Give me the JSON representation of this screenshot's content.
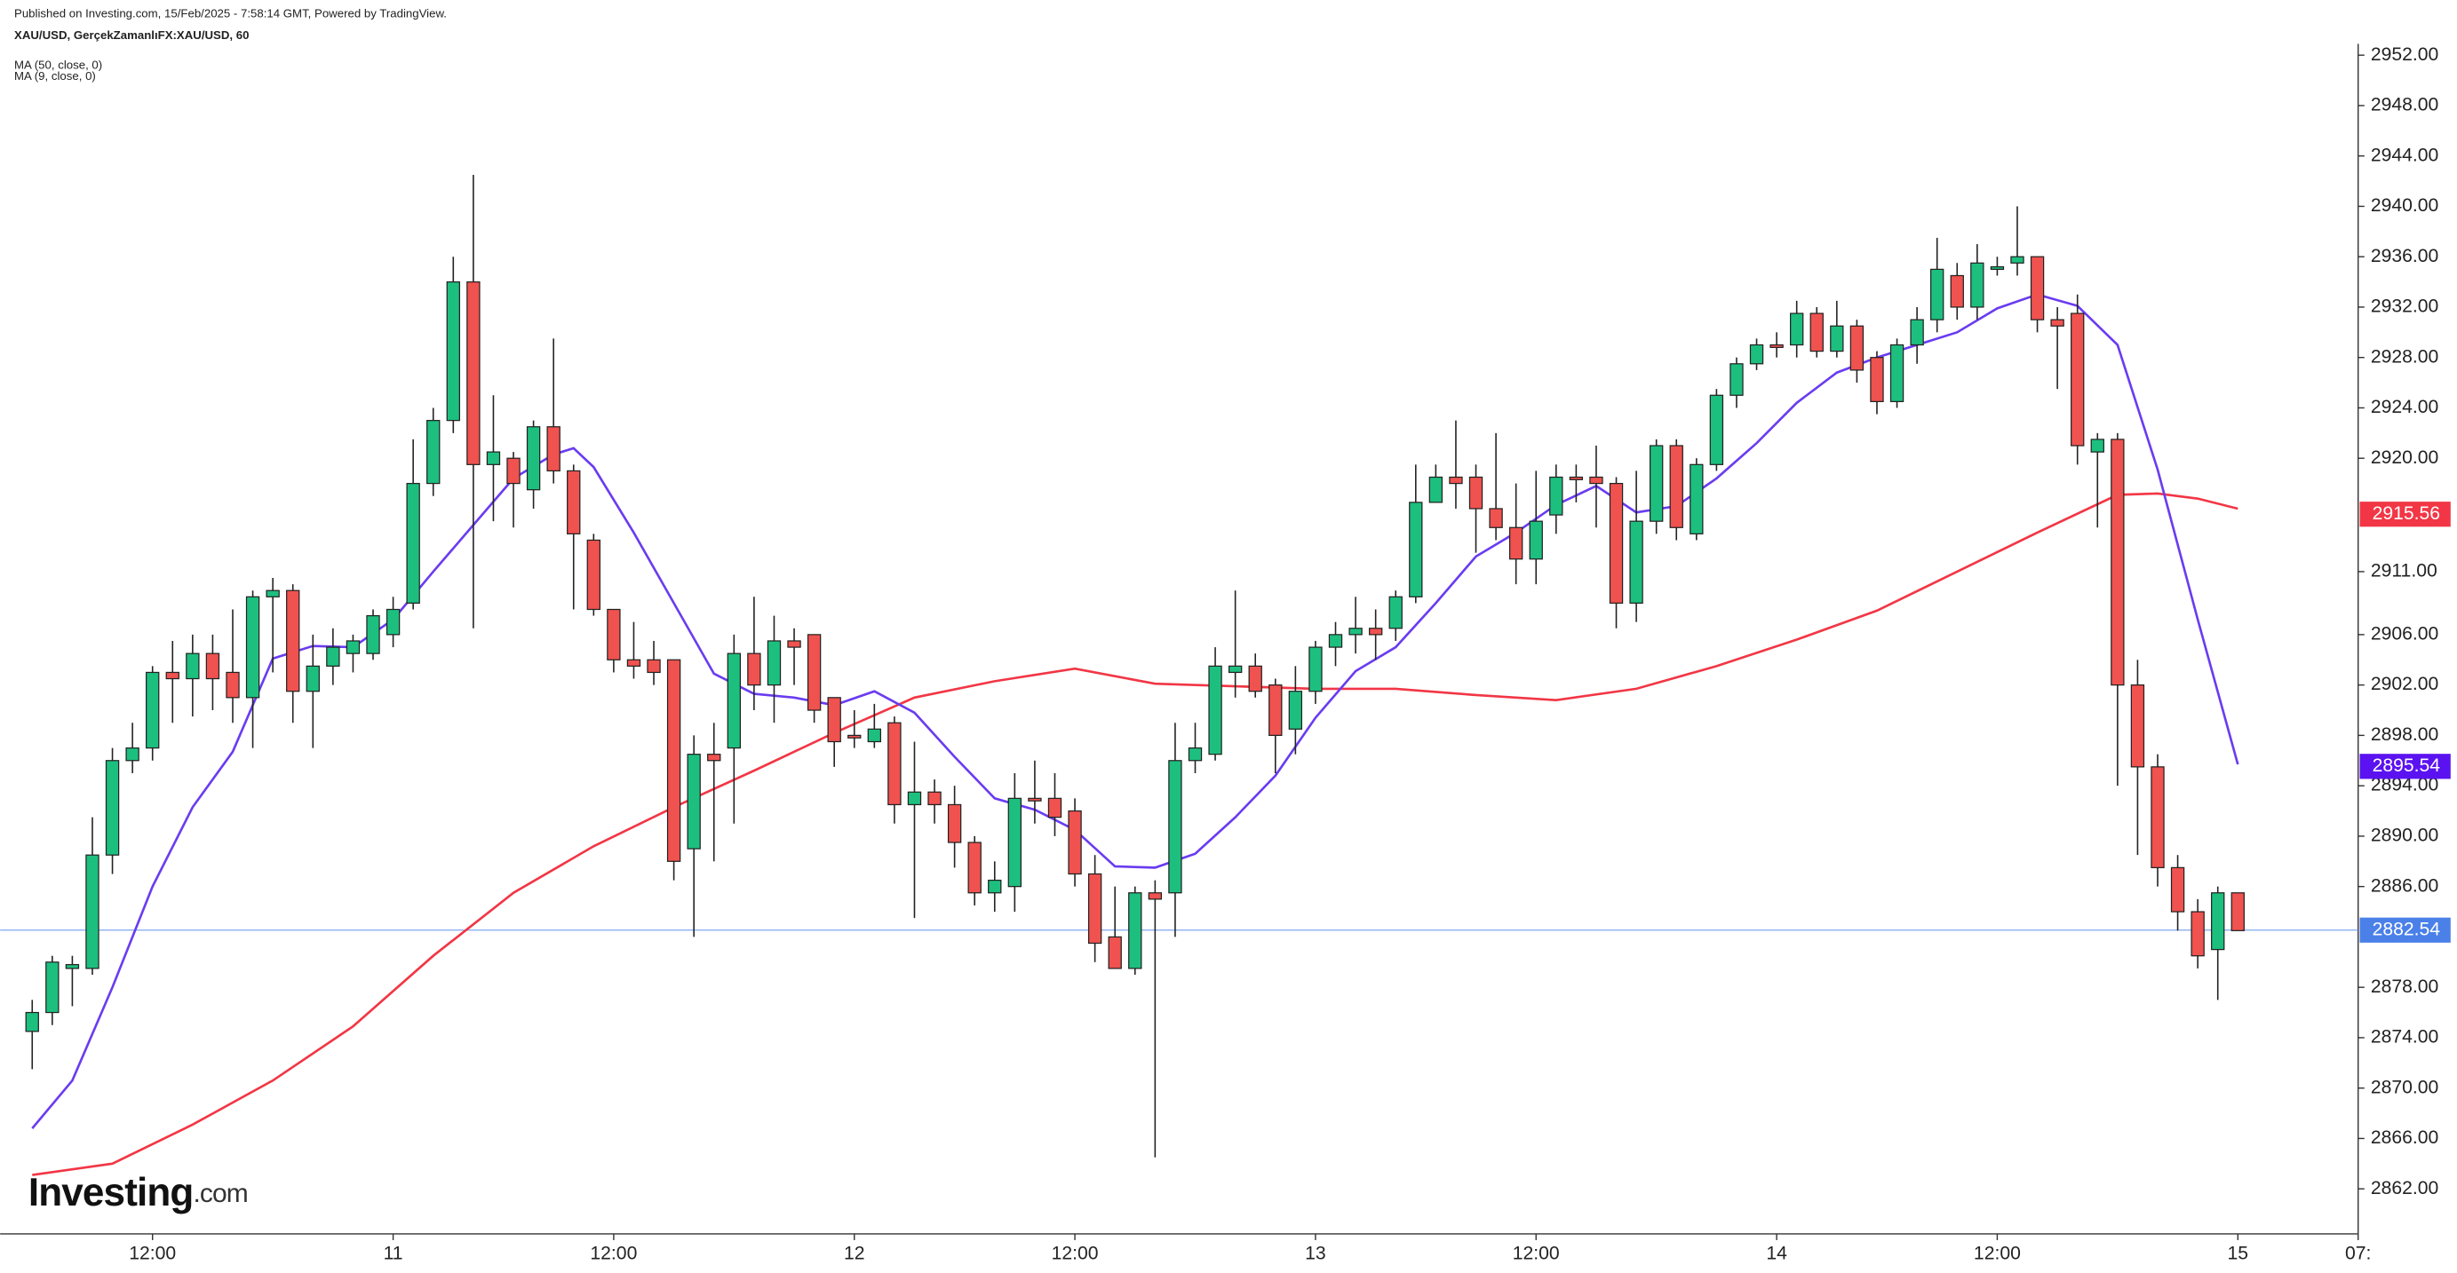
{
  "chart_data": {
    "type": "candlestick",
    "source": "Published on Investing.com, 15/Feb/2025 - 7:58:14 GMT, Powered by TradingView.",
    "title": "XAU/USD, GerçekZamanlıFX:XAU/USD, 60",
    "logo": "Investing",
    "logo_suffix": ".com",
    "up_color": "#1dbf7f",
    "down_color": "#f0524f",
    "x": [
      0,
      1,
      2,
      3,
      4,
      5,
      6,
      7,
      8,
      9,
      10,
      11,
      12,
      13,
      14,
      15,
      16,
      17,
      18,
      19,
      20,
      21,
      22,
      23,
      24,
      25,
      26,
      27,
      28,
      29,
      30,
      31,
      32,
      33,
      34,
      35,
      36,
      37,
      38,
      39,
      40,
      41,
      42,
      43,
      44,
      45,
      46,
      47,
      48,
      49,
      50,
      51,
      52,
      53,
      54,
      55,
      56,
      57,
      58,
      59,
      60,
      61,
      62,
      63,
      64,
      65,
      66,
      67,
      68,
      69,
      70,
      71,
      72,
      73,
      74,
      75,
      76,
      77,
      78,
      79,
      80,
      81,
      82,
      83,
      84,
      85,
      86,
      87,
      88,
      89,
      90,
      91,
      92,
      93,
      94,
      95,
      96,
      97,
      98,
      99,
      100,
      101,
      102,
      103,
      104,
      105,
      106,
      107,
      108,
      109,
      110
    ],
    "open": [
      2874.5,
      2876,
      2879.5,
      2879.5,
      2888.5,
      2896,
      2897,
      2903,
      2902.5,
      2904.5,
      2903,
      2901,
      2909,
      2909.5,
      2901.5,
      2903.5,
      2904.5,
      2904.5,
      2906,
      2908.5,
      2918,
      2923,
      2934,
      2919.5,
      2920,
      2917.5,
      2922.5,
      2919,
      2913.5,
      2908,
      2904,
      2904,
      2904,
      2889,
      2896.5,
      2897,
      2904.5,
      2902,
      2905.5,
      2906,
      2901,
      2898,
      2897.5,
      2899,
      2892.5,
      2893.5,
      2892.5,
      2889.5,
      2885.5,
      2886,
      2893,
      2893,
      2892,
      2887,
      2882,
      2879.5,
      2885.5,
      2885.5,
      2896,
      2896.5,
      2903,
      2903.5,
      2902,
      2898.5,
      2901.5,
      2905,
      2906,
      2906.5,
      2906.5,
      2909,
      2916.5,
      2918.5,
      2918.5,
      2916,
      2914.5,
      2912,
      2915.5,
      2918.5,
      2918.5,
      2918,
      2908.5,
      2915,
      2921,
      2914,
      2919.5,
      2925,
      2927.5,
      2929,
      2929,
      2931.5,
      2928.5,
      2930.5,
      2928,
      2924.5,
      2929,
      2931,
      2934.5,
      2932,
      2935,
      2935.5,
      2936,
      2931,
      2931.5,
      2920.5,
      2921.5,
      2902,
      2895.5,
      2887.5,
      2884,
      2881,
      2885.5
    ],
    "high": [
      2877,
      2880.5,
      2880.5,
      2891.5,
      2897,
      2899,
      2903.5,
      2905.5,
      2906,
      2906,
      2908,
      2909.5,
      2910.5,
      2910,
      2906,
      2906.5,
      2906,
      2908,
      2909,
      2921.5,
      2924,
      2936,
      2942.5,
      2925,
      2920.5,
      2923,
      2929.5,
      2919.5,
      2914,
      2908,
      2907,
      2905.5,
      2904,
      2898,
      2899,
      2906,
      2909,
      2907.5,
      2906.5,
      2906,
      2901,
      2900,
      2900.5,
      2899.5,
      2897.5,
      2894.5,
      2894,
      2890,
      2888,
      2895,
      2896,
      2895,
      2893,
      2888.5,
      2886,
      2886,
      2886.5,
      2899,
      2899,
      2905,
      2909.5,
      2904.5,
      2902.5,
      2903.5,
      2905.5,
      2907,
      2909,
      2908,
      2909.5,
      2919.5,
      2919.5,
      2923,
      2919.5,
      2922,
      2918,
      2919,
      2919.5,
      2919.5,
      2921,
      2918.5,
      2919,
      2921.5,
      2921.5,
      2920,
      2925.5,
      2928,
      2929.5,
      2930,
      2932.5,
      2932,
      2932.5,
      2931,
      2928.5,
      2929.5,
      2932,
      2937.5,
      2935.5,
      2937,
      2936,
      2940,
      2936,
      2932,
      2933,
      2922,
      2922,
      2904,
      2896.5,
      2888.5,
      2885,
      2886,
      2885.5
    ],
    "low": [
      2871.5,
      2875,
      2876.5,
      2879,
      2887,
      2895,
      2896,
      2899,
      2899.5,
      2900,
      2899,
      2897,
      2903,
      2899,
      2897,
      2902,
      2903,
      2904,
      2905,
      2908,
      2917,
      2922,
      2906.5,
      2915,
      2914.5,
      2916,
      2918,
      2908,
      2907.5,
      2903,
      2902.5,
      2902,
      2886.5,
      2882,
      2888,
      2891,
      2900,
      2899,
      2902,
      2899,
      2895.5,
      2897,
      2897,
      2891,
      2883.5,
      2891,
      2887.5,
      2884.5,
      2884,
      2884,
      2891,
      2890,
      2886,
      2880,
      2879.5,
      2879,
      2864.5,
      2882,
      2895,
      2896,
      2901,
      2901,
      2895,
      2896.5,
      2900.5,
      2903.5,
      2904.5,
      2904,
      2905.5,
      2908.5,
      2916.5,
      2916,
      2912.5,
      2913.5,
      2910,
      2910,
      2914,
      2916.5,
      2914.5,
      2906.5,
      2907,
      2914,
      2913.5,
      2913.5,
      2919,
      2924,
      2927,
      2928,
      2928,
      2928,
      2928,
      2926,
      2923.5,
      2924,
      2927.5,
      2930,
      2931,
      2931,
      2934.5,
      2934.5,
      2930,
      2925.5,
      2919.5,
      2914.5,
      2894,
      2888.5,
      2886,
      2882.5,
      2879.5,
      2877,
      2882.5
    ],
    "close": [
      2876,
      2880,
      2879.8,
      2888.5,
      2896,
      2897,
      2903,
      2902.5,
      2904.5,
      2902.5,
      2901,
      2909,
      2909.5,
      2901.5,
      2903.5,
      2905,
      2905.5,
      2907.5,
      2908,
      2918,
      2923,
      2934,
      2919.5,
      2920.5,
      2918,
      2922.5,
      2919,
      2914,
      2908,
      2904,
      2903.5,
      2903,
      2888,
      2896.5,
      2896,
      2904.5,
      2902,
      2905.5,
      2905,
      2900,
      2897.5,
      2897.8,
      2898.5,
      2892.5,
      2893.5,
      2892.5,
      2889.5,
      2885.5,
      2886.5,
      2893,
      2892.8,
      2891.5,
      2887,
      2881.5,
      2879.5,
      2885.5,
      2885,
      2896,
      2897,
      2903.5,
      2903.5,
      2901.5,
      2898,
      2901.5,
      2905,
      2906,
      2906.5,
      2906,
      2909,
      2916.5,
      2918.5,
      2918,
      2916,
      2914.5,
      2912,
      2915,
      2918.5,
      2918.3,
      2918,
      2908.5,
      2915,
      2921,
      2914.5,
      2919.5,
      2925,
      2927.5,
      2929,
      2928.8,
      2931.5,
      2928.5,
      2930.5,
      2927,
      2924.5,
      2929,
      2931,
      2935,
      2932,
      2935.5,
      2935.2,
      2936,
      2931,
      2930.5,
      2921,
      2921.5,
      2902,
      2895.5,
      2887.5,
      2884,
      2880.5,
      2885.5,
      2882.5
    ],
    "series": [
      {
        "name": "MA (50, close, 0)",
        "color": "#f23645",
        "x": [
          0,
          4,
          8,
          12,
          16,
          20,
          24,
          28,
          32,
          36,
          40,
          44,
          48,
          52,
          56,
          60,
          64,
          68,
          72,
          76,
          80,
          84,
          88,
          92,
          96,
          100,
          104,
          106,
          108,
          110
        ],
        "values": [
          2863.1,
          2864,
          2867.1,
          2870.6,
          2874.9,
          2880.5,
          2885.5,
          2889.2,
          2892.3,
          2895.2,
          2898.2,
          2901,
          2902.3,
          2903.3,
          2902.1,
          2901.9,
          2901.7,
          2901.7,
          2901.2,
          2900.8,
          2901.7,
          2903.5,
          2905.6,
          2907.9,
          2911,
          2914.1,
          2917.1,
          2917.2,
          2916.8,
          2916
        ]
      },
      {
        "name": "MA (9, close, 0)",
        "color": "#6a3cf0",
        "x": [
          0,
          2,
          4,
          6,
          8,
          10,
          12,
          14,
          16,
          18,
          20,
          22,
          24,
          26,
          27,
          28,
          30,
          32,
          34,
          36,
          38,
          40,
          42,
          44,
          46,
          48,
          50,
          52,
          54,
          56,
          58,
          60,
          62,
          64,
          66,
          68,
          70,
          72,
          74,
          76,
          78,
          80,
          82,
          84,
          86,
          88,
          90,
          92,
          94,
          96,
          98,
          100,
          102,
          104,
          106,
          108,
          110
        ],
        "values": [
          2866.8,
          2870.6,
          2878,
          2886,
          2892.3,
          2896.7,
          2904.1,
          2905.1,
          2905,
          2907.2,
          2911,
          2914.7,
          2918.4,
          2920.3,
          2920.8,
          2919.3,
          2914.1,
          2908.5,
          2902.9,
          2901.3,
          2901,
          2900.4,
          2901.5,
          2899.8,
          2896.3,
          2893,
          2892.1,
          2890.5,
          2887.6,
          2887.5,
          2888.6,
          2891.5,
          2894.8,
          2899.4,
          2903.1,
          2905,
          2908.5,
          2912.2,
          2914.1,
          2916.3,
          2917.8,
          2915.7,
          2916.2,
          2918.4,
          2921.2,
          2924.4,
          2926.8,
          2928,
          2929,
          2930,
          2931.9,
          2933,
          2932.1,
          2929,
          2919.1,
          2907.2,
          2895.7
        ]
      }
    ],
    "price_labels": [
      {
        "value": 2915.56,
        "color": "#f23645"
      },
      {
        "value": 2895.54,
        "color": "#5b12f0"
      },
      {
        "value": 2882.54,
        "color": "#4a80e8",
        "line": true
      }
    ],
    "ylim": [
      2858.8,
      2952.9
    ],
    "xlim": [
      -0.8,
      116.8
    ],
    "yticks": [
      {
        "value": 2952,
        "label": "2952.00"
      },
      {
        "value": 2948,
        "label": "2948.00"
      },
      {
        "value": 2944,
        "label": "2944.00"
      },
      {
        "value": 2940,
        "label": "2940.00"
      },
      {
        "value": 2936,
        "label": "2936.00"
      },
      {
        "value": 2932,
        "label": "2932.00"
      },
      {
        "value": 2928,
        "label": "2928.00"
      },
      {
        "value": 2924,
        "label": "2924.00"
      },
      {
        "value": 2920,
        "label": "2920.00"
      },
      {
        "value": 2911,
        "label": "2911.00"
      },
      {
        "value": 2906,
        "label": "2906.00"
      },
      {
        "value": 2902,
        "label": "2902.00"
      },
      {
        "value": 2898,
        "label": "2898.00"
      },
      {
        "value": 2894,
        "label": "2894.00"
      },
      {
        "value": 2890,
        "label": "2890.00"
      },
      {
        "value": 2886,
        "label": "2886.00"
      },
      {
        "value": 2878,
        "label": "2878.00"
      },
      {
        "value": 2874,
        "label": "2874.00"
      },
      {
        "value": 2870,
        "label": "2870.00"
      },
      {
        "value": 2866,
        "label": "2866.00"
      },
      {
        "value": 2862,
        "label": "2862.00"
      }
    ],
    "xticks": [
      {
        "value": 6,
        "label": "12:00"
      },
      {
        "value": 18,
        "label": "11"
      },
      {
        "value": 29,
        "label": "12:00"
      },
      {
        "value": 41,
        "label": "12"
      },
      {
        "value": 52,
        "label": "12:00"
      },
      {
        "value": 64,
        "label": "13"
      },
      {
        "value": 75,
        "label": "12:00"
      },
      {
        "value": 87,
        "label": "14"
      },
      {
        "value": 98,
        "label": "12:00"
      },
      {
        "value": 110,
        "label": "15"
      },
      {
        "value": 116,
        "label": "07:"
      }
    ]
  }
}
